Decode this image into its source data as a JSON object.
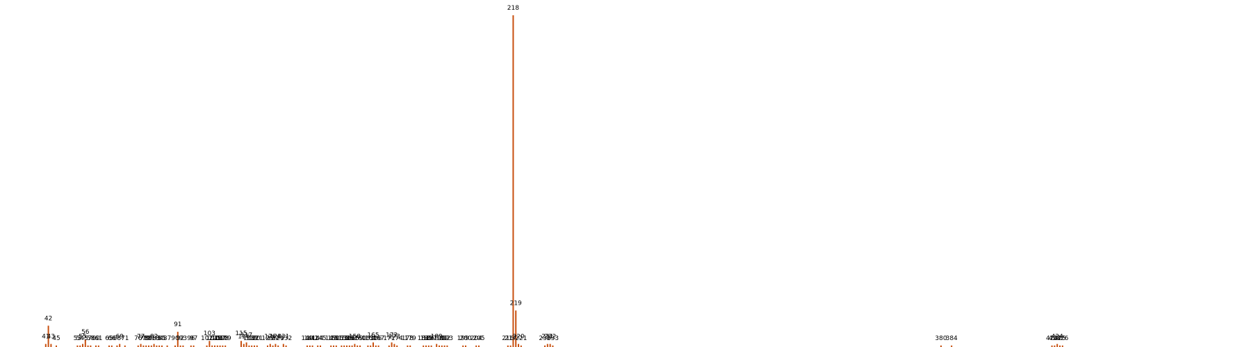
{
  "chart_data": {
    "type": "bar",
    "title": "",
    "xlabel": "",
    "ylabel": "",
    "bar_color": "#c8500f",
    "axes_visible": false,
    "grid": false,
    "ylim": [
      0,
      220
    ],
    "xlim": [
      20,
      460
    ],
    "points": [
      {
        "x": 41,
        "y": 2
      },
      {
        "x": 42,
        "y": 14
      },
      {
        "x": 43,
        "y": 2
      },
      {
        "x": 45,
        "y": 1
      },
      {
        "x": 53,
        "y": 1
      },
      {
        "x": 54,
        "y": 1
      },
      {
        "x": 55,
        "y": 2
      },
      {
        "x": 56,
        "y": 5
      },
      {
        "x": 57,
        "y": 1
      },
      {
        "x": 58,
        "y": 1
      },
      {
        "x": 60,
        "y": 1
      },
      {
        "x": 61,
        "y": 1
      },
      {
        "x": 65,
        "y": 1
      },
      {
        "x": 66,
        "y": 1
      },
      {
        "x": 68,
        "y": 1
      },
      {
        "x": 69,
        "y": 2
      },
      {
        "x": 71,
        "y": 1
      },
      {
        "x": 76,
        "y": 1
      },
      {
        "x": 77,
        "y": 2
      },
      {
        "x": 78,
        "y": 1
      },
      {
        "x": 79,
        "y": 1
      },
      {
        "x": 80,
        "y": 1
      },
      {
        "x": 81,
        "y": 1
      },
      {
        "x": 82,
        "y": 2
      },
      {
        "x": 83,
        "y": 1
      },
      {
        "x": 84,
        "y": 1
      },
      {
        "x": 85,
        "y": 1
      },
      {
        "x": 87,
        "y": 1
      },
      {
        "x": 90,
        "y": 1
      },
      {
        "x": 91,
        "y": 10
      },
      {
        "x": 92,
        "y": 1
      },
      {
        "x": 93,
        "y": 1
      },
      {
        "x": 96,
        "y": 1
      },
      {
        "x": 97,
        "y": 1
      },
      {
        "x": 102,
        "y": 1
      },
      {
        "x": 103,
        "y": 4
      },
      {
        "x": 104,
        "y": 1
      },
      {
        "x": 105,
        "y": 1
      },
      {
        "x": 106,
        "y": 1
      },
      {
        "x": 107,
        "y": 1
      },
      {
        "x": 108,
        "y": 1
      },
      {
        "x": 109,
        "y": 1
      },
      {
        "x": 115,
        "y": 4
      },
      {
        "x": 116,
        "y": 2
      },
      {
        "x": 117,
        "y": 3
      },
      {
        "x": 118,
        "y": 1
      },
      {
        "x": 119,
        "y": 1
      },
      {
        "x": 120,
        "y": 1
      },
      {
        "x": 121,
        "y": 1
      },
      {
        "x": 125,
        "y": 1
      },
      {
        "x": 126,
        "y": 2
      },
      {
        "x": 127,
        "y": 1
      },
      {
        "x": 128,
        "y": 2
      },
      {
        "x": 129,
        "y": 1
      },
      {
        "x": 131,
        "y": 2
      },
      {
        "x": 132,
        "y": 1
      },
      {
        "x": 140,
        "y": 1
      },
      {
        "x": 141,
        "y": 1
      },
      {
        "x": 142,
        "y": 1
      },
      {
        "x": 144,
        "y": 1
      },
      {
        "x": 145,
        "y": 1
      },
      {
        "x": 149,
        "y": 1
      },
      {
        "x": 150,
        "y": 1
      },
      {
        "x": 151,
        "y": 1
      },
      {
        "x": 153,
        "y": 1
      },
      {
        "x": 154,
        "y": 1
      },
      {
        "x": 155,
        "y": 1
      },
      {
        "x": 156,
        "y": 1
      },
      {
        "x": 157,
        "y": 1
      },
      {
        "x": 158,
        "y": 2
      },
      {
        "x": 159,
        "y": 1
      },
      {
        "x": 160,
        "y": 1
      },
      {
        "x": 163,
        "y": 1
      },
      {
        "x": 164,
        "y": 1
      },
      {
        "x": 165,
        "y": 3
      },
      {
        "x": 166,
        "y": 1
      },
      {
        "x": 167,
        "y": 1
      },
      {
        "x": 171,
        "y": 1
      },
      {
        "x": 172,
        "y": 3
      },
      {
        "x": 173,
        "y": 2
      },
      {
        "x": 174,
        "y": 1
      },
      {
        "x": 178,
        "y": 1
      },
      {
        "x": 179,
        "y": 1
      },
      {
        "x": 184,
        "y": 1
      },
      {
        "x": 185,
        "y": 1
      },
      {
        "x": 186,
        "y": 1
      },
      {
        "x": 187,
        "y": 1
      },
      {
        "x": 189,
        "y": 2
      },
      {
        "x": 190,
        "y": 1
      },
      {
        "x": 191,
        "y": 1
      },
      {
        "x": 192,
        "y": 1
      },
      {
        "x": 193,
        "y": 1
      },
      {
        "x": 199,
        "y": 1
      },
      {
        "x": 200,
        "y": 1
      },
      {
        "x": 204,
        "y": 1
      },
      {
        "x": 205,
        "y": 1
      },
      {
        "x": 216,
        "y": 1
      },
      {
        "x": 217,
        "y": 1
      },
      {
        "x": 218,
        "y": 218
      },
      {
        "x": 219,
        "y": 24
      },
      {
        "x": 220,
        "y": 2
      },
      {
        "x": 221,
        "y": 1
      },
      {
        "x": 230,
        "y": 1
      },
      {
        "x": 231,
        "y": 2
      },
      {
        "x": 232,
        "y": 2
      },
      {
        "x": 233,
        "y": 1
      },
      {
        "x": 380,
        "y": 1
      },
      {
        "x": 384,
        "y": 1
      },
      {
        "x": 422,
        "y": 1
      },
      {
        "x": 423,
        "y": 1
      },
      {
        "x": 424,
        "y": 2
      },
      {
        "x": 425,
        "y": 1
      },
      {
        "x": 426,
        "y": 1
      }
    ]
  }
}
